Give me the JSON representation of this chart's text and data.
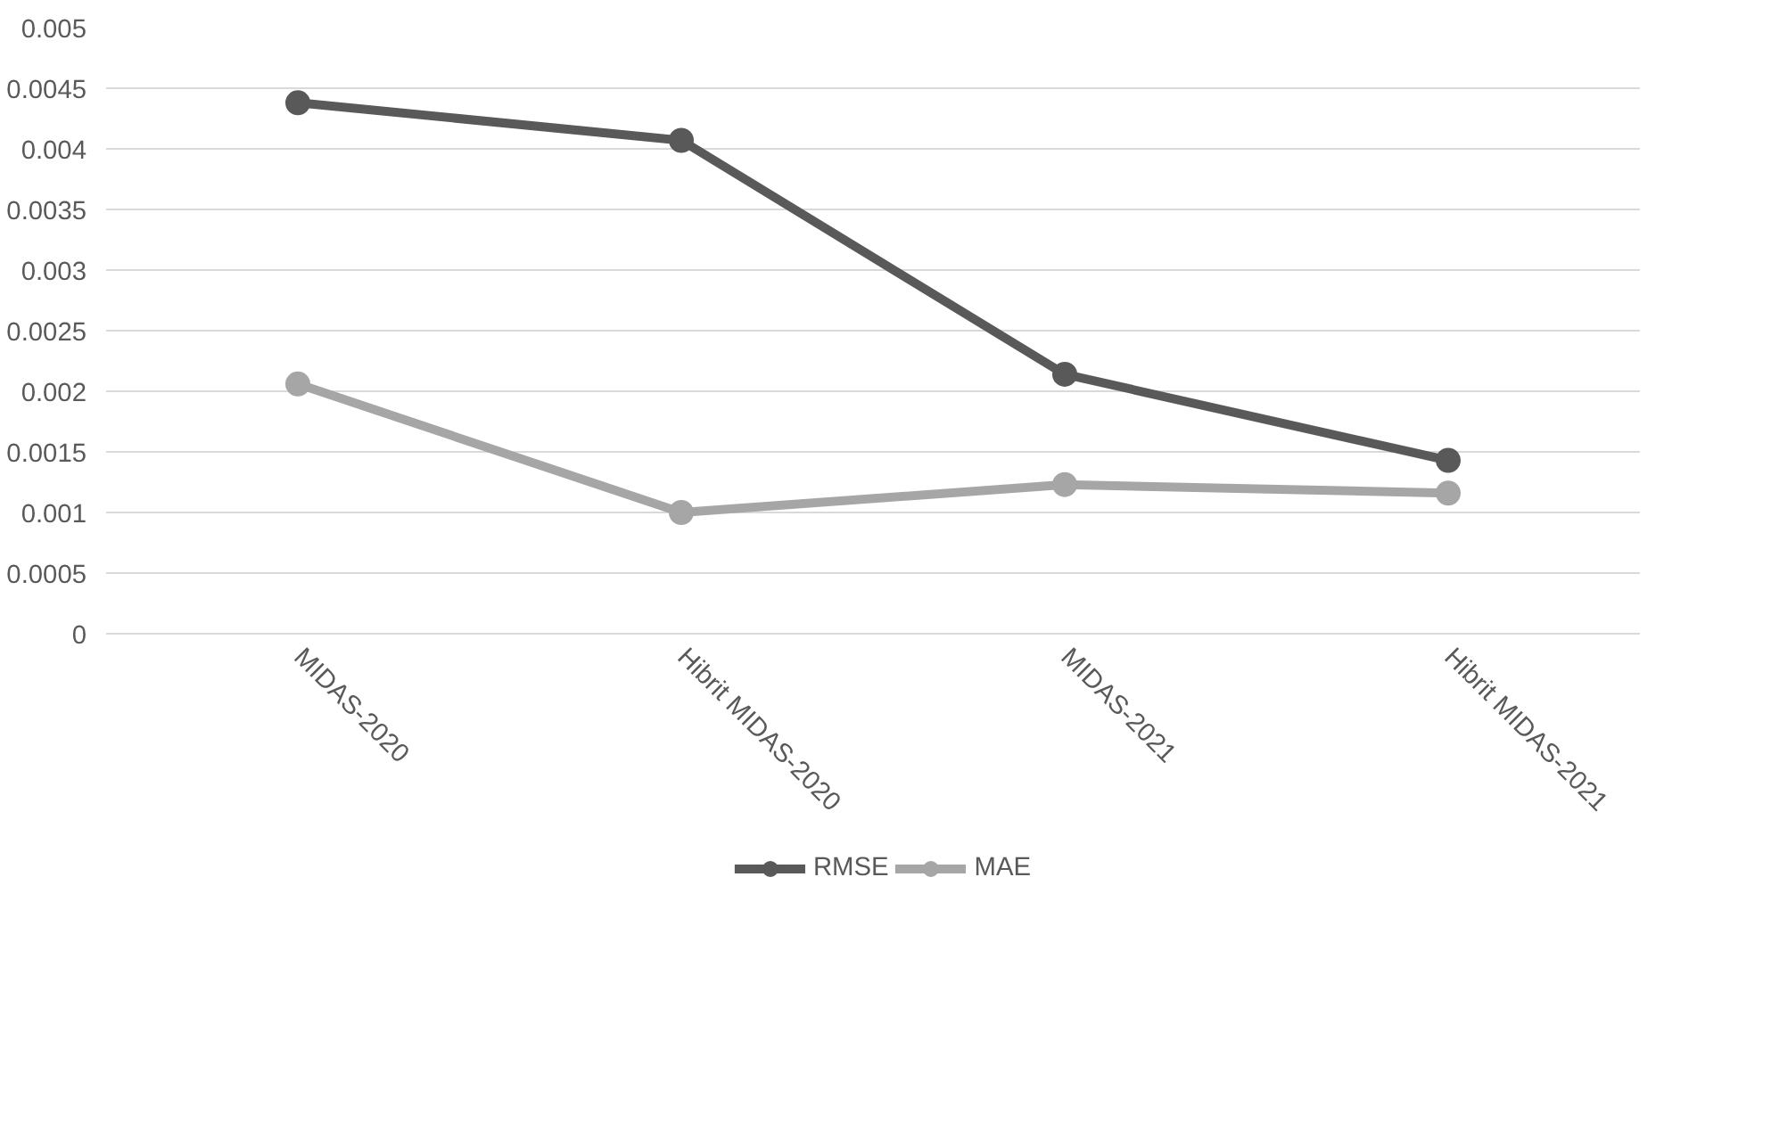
{
  "chart_data": {
    "type": "line",
    "categories": [
      "MIDAS-2020",
      "Hibrit MIDAS-2020",
      "MIDAS-2021",
      "Hibrit MIDAS-2021"
    ],
    "series": [
      {
        "name": "RMSE",
        "color": "#595959",
        "values": [
          0.00438,
          0.00407,
          0.00214,
          0.00143
        ]
      },
      {
        "name": "MAE",
        "color": "#a6a6a6",
        "values": [
          0.00206,
          0.001,
          0.00123,
          0.00116
        ]
      }
    ],
    "ylim": [
      0,
      0.005
    ],
    "yticks": [
      0,
      0.0005,
      0.001,
      0.0015,
      0.002,
      0.0025,
      0.003,
      0.0035,
      0.004,
      0.0045,
      0.005
    ],
    "grid": "y",
    "legend": "bottom",
    "marker": "circle",
    "line_style": "solid"
  }
}
